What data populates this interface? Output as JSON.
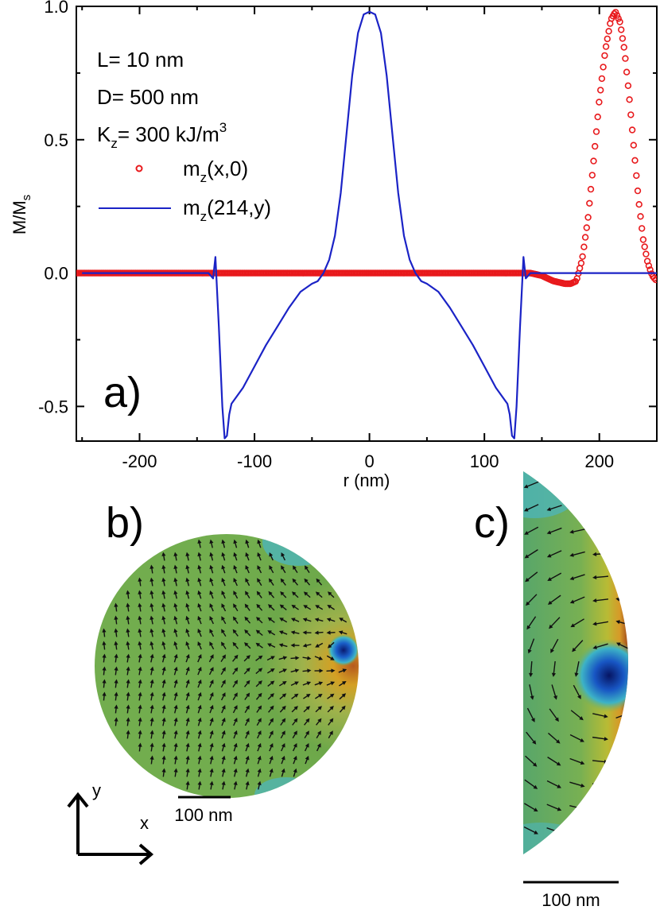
{
  "chart_data": {
    "type": "line",
    "panel_label": "a)",
    "xlabel": "r (nm)",
    "ylabel": "M/M",
    "ylabel_sub": "s",
    "xlim": [
      -255,
      250
    ],
    "ylim": [
      -0.63,
      1.0
    ],
    "x_ticks": [
      -200,
      -100,
      0,
      100,
      200
    ],
    "x_tick_labels": [
      "-200",
      "-100",
      "0",
      "100",
      "200"
    ],
    "y_ticks": [
      -0.5,
      0.0,
      0.5,
      1.0
    ],
    "y_tick_labels": [
      "-0.5",
      "0.0",
      "0.5",
      "1.0"
    ],
    "annotations": {
      "L": "L= 10 nm",
      "D": "D= 500 nm",
      "K_prefix": "K",
      "K_sub": "z",
      "K_text": "= 300 kJ/m",
      "K_sup": "3"
    },
    "series": [
      {
        "name": "m_z(x,0)",
        "legend_main": "m",
        "legend_sub": "z",
        "legend_rest": "(x,0)",
        "style": "circles",
        "color": "#e8191c",
        "x": [
          -250,
          -200,
          -150,
          -100,
          -50,
          0,
          50,
          100,
          140,
          150,
          160,
          170,
          175,
          180,
          185,
          190,
          195,
          200,
          205,
          210,
          214,
          218,
          222,
          226,
          230,
          234,
          238,
          242,
          246,
          250
        ],
        "y": [
          0,
          0,
          0,
          0,
          0,
          0,
          0,
          0,
          0,
          -0.01,
          -0.03,
          -0.04,
          -0.04,
          -0.03,
          0.05,
          0.2,
          0.42,
          0.65,
          0.83,
          0.95,
          0.98,
          0.94,
          0.83,
          0.66,
          0.47,
          0.28,
          0.13,
          0.04,
          -0.01,
          -0.03
        ]
      },
      {
        "name": "m_z(214,y)",
        "legend_main": "m",
        "legend_sub": "z",
        "legend_rest": "(214,y)",
        "style": "line",
        "color": "#1b23c6",
        "x": [
          -250,
          -150,
          -140,
          -136,
          -134,
          -131,
          -128,
          -126,
          -124,
          -122,
          -120,
          -110,
          -100,
          -90,
          -80,
          -70,
          -60,
          -50,
          -45,
          -40,
          -35,
          -30,
          -25,
          -20,
          -15,
          -10,
          -5,
          0,
          5,
          10,
          15,
          20,
          25,
          30,
          35,
          40,
          45,
          50,
          60,
          70,
          80,
          90,
          100,
          110,
          120,
          122,
          124,
          126,
          128,
          131,
          134,
          136,
          140,
          150,
          250
        ],
        "y": [
          0,
          0,
          0,
          -0.02,
          0.06,
          -0.2,
          -0.5,
          -0.62,
          -0.61,
          -0.53,
          -0.49,
          -0.43,
          -0.35,
          -0.27,
          -0.2,
          -0.13,
          -0.07,
          -0.04,
          -0.03,
          0.0,
          0.05,
          0.14,
          0.3,
          0.52,
          0.74,
          0.9,
          0.97,
          0.98,
          0.97,
          0.9,
          0.74,
          0.52,
          0.3,
          0.14,
          0.05,
          0.0,
          -0.03,
          -0.04,
          -0.07,
          -0.13,
          -0.2,
          -0.27,
          -0.35,
          -0.43,
          -0.49,
          -0.53,
          -0.61,
          -0.62,
          -0.5,
          -0.2,
          0.06,
          -0.02,
          0,
          0,
          0
        ]
      }
    ]
  },
  "panel_b": {
    "label": "b)",
    "scale_bar": "100 nm",
    "axis_y": "y",
    "axis_x": "x"
  },
  "panel_c": {
    "label": "c)",
    "scale_bar": "100 nm"
  }
}
